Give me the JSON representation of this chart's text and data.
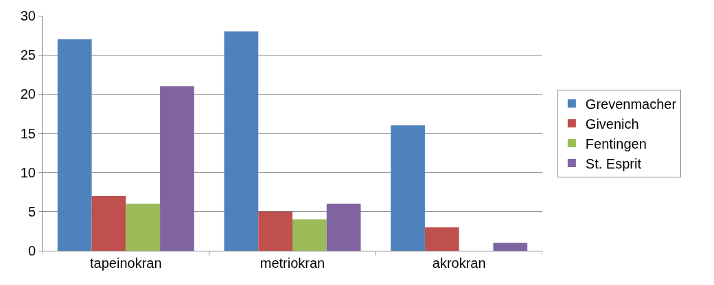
{
  "chart_data": {
    "type": "bar",
    "categories": [
      "tapeinokran",
      "metriokran",
      "akrokran"
    ],
    "series": [
      {
        "name": "Grevenmacher",
        "color": "#4f81bd",
        "values": [
          27,
          28,
          16
        ]
      },
      {
        "name": "Givenich",
        "color": "#c0504d",
        "values": [
          7,
          5,
          3
        ]
      },
      {
        "name": "Fentingen",
        "color": "#9bbb59",
        "values": [
          6,
          4,
          0
        ]
      },
      {
        "name": "St. Esprit",
        "color": "#8064a2",
        "values": [
          21,
          6,
          1
        ]
      }
    ],
    "ylim": [
      0,
      30
    ],
    "yticks": [
      0,
      5,
      10,
      15,
      20,
      25,
      30
    ],
    "grid": "y",
    "legend": "right"
  }
}
